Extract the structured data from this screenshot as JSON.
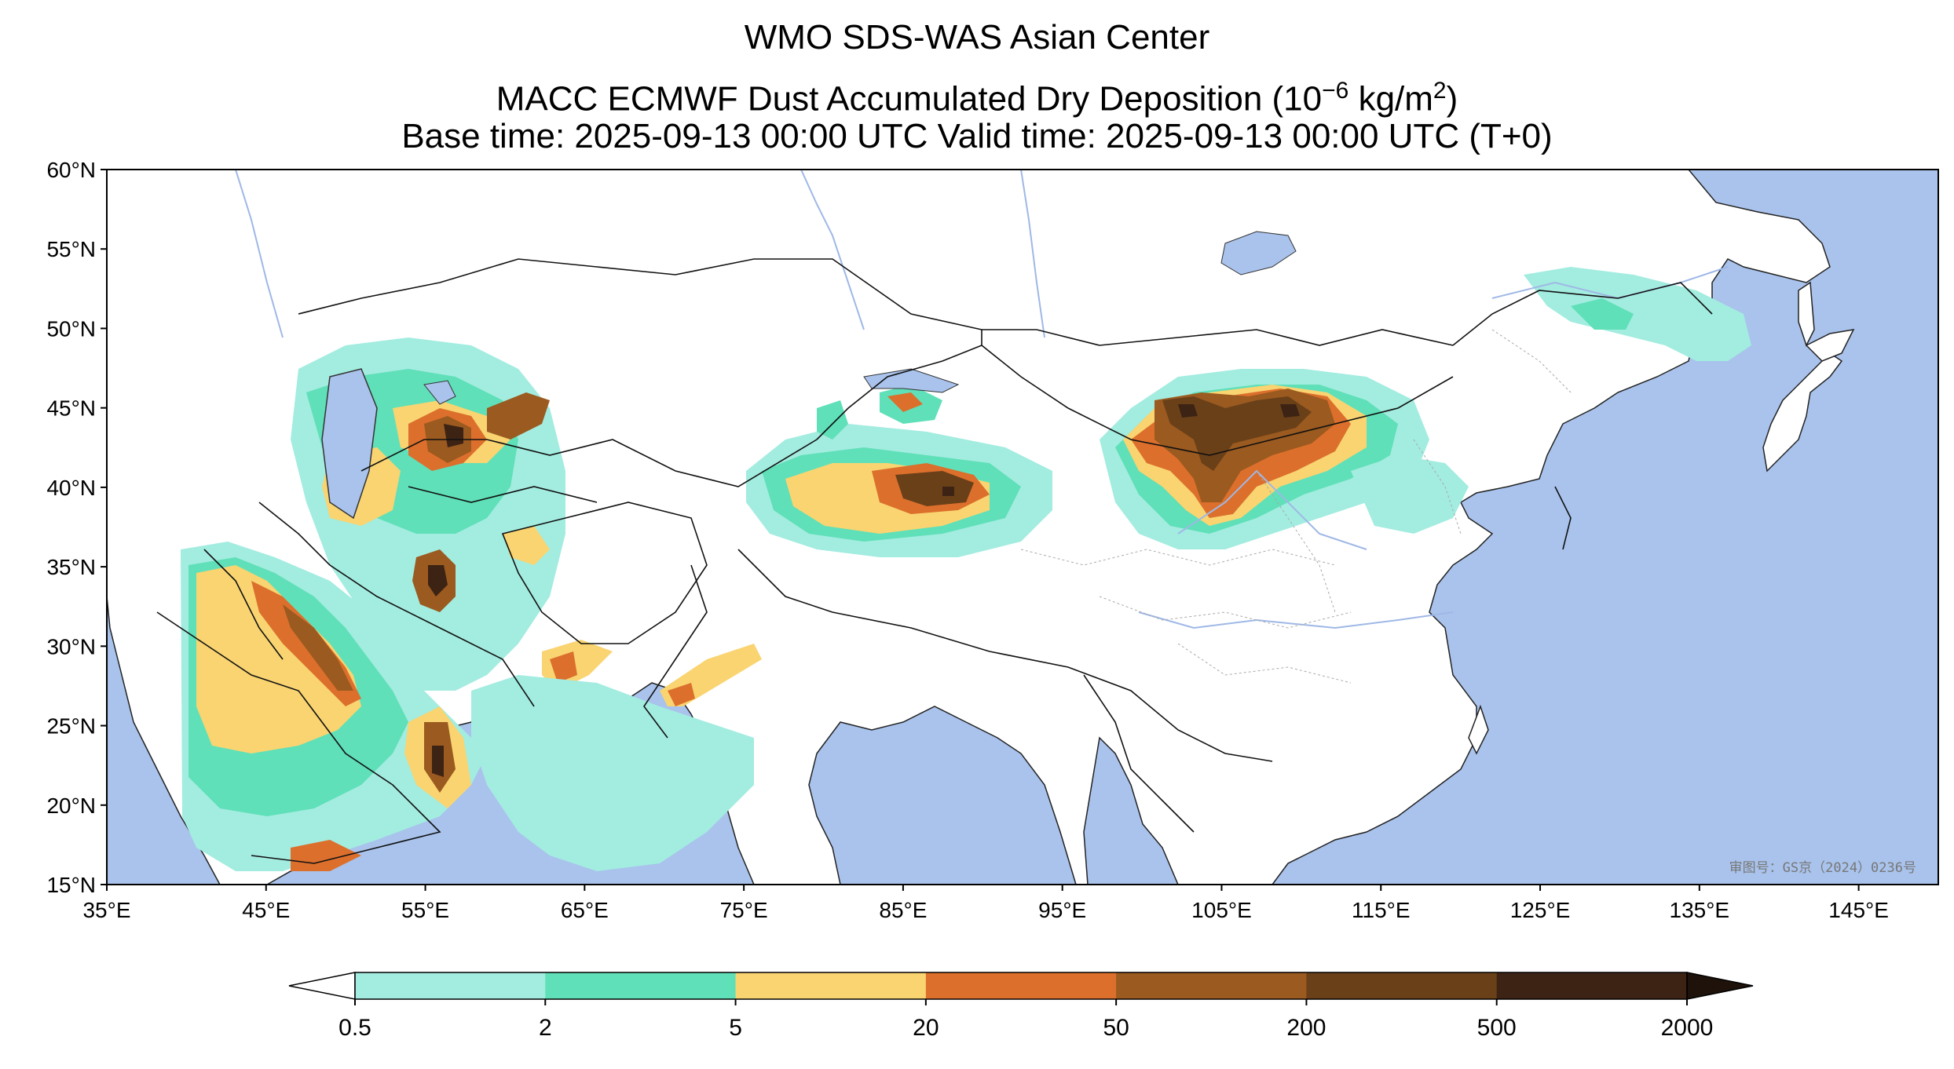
{
  "header": {
    "title1": "WMO SDS-WAS Asian Center",
    "title2_main": "MACC ECMWF Dust Accumulated Dry Deposition (10",
    "title2_exp": "−6",
    "title2_unit": " kg/m",
    "title2_exp2": "2",
    "title2_close": ")",
    "title3": "Base time: 2025-09-13 00:00 UTC Valid time: 2025-09-13 00:00 UTC (T+0)"
  },
  "map": {
    "lon_range": [
      35,
      150
    ],
    "lat_range": [
      15,
      60
    ],
    "lon_ticks": [
      "35°E",
      "45°E",
      "55°E",
      "65°E",
      "75°E",
      "85°E",
      "95°E",
      "105°E",
      "115°E",
      "125°E",
      "135°E",
      "145°E"
    ],
    "lat_ticks": [
      "60°N",
      "55°N",
      "50°N",
      "45°N",
      "40°N",
      "35°N",
      "30°N",
      "25°N",
      "20°N",
      "15°N"
    ],
    "watermark": "审图号：GS京（2024）0236号",
    "ocean_color": "#a9c3ec",
    "land_color": "#ffffff"
  },
  "colorbar": {
    "boundaries": [
      "0.5",
      "2",
      "5",
      "20",
      "50",
      "200",
      "500",
      "2000"
    ],
    "colors": [
      "#a3ece0",
      "#5fe0b8",
      "#f9d471",
      "#dc6f2c",
      "#9b5a1f",
      "#6a4019",
      "#3c2314"
    ],
    "under_color": "#ffffff",
    "over_color": "#1e120a"
  }
}
